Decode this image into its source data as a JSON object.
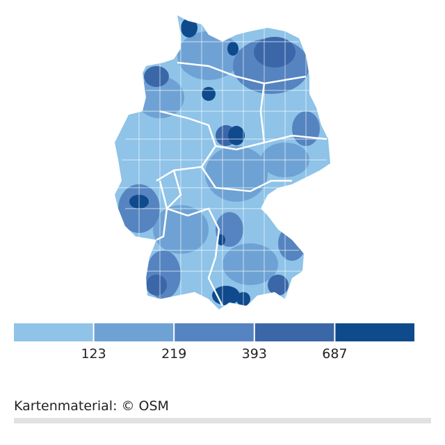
{
  "legend": {
    "colors": [
      "#8fc3e8",
      "#6fa2d4",
      "#5584c0",
      "#3b67a8",
      "#0f4a8c"
    ],
    "breaks": [
      123,
      219,
      393,
      687
    ]
  },
  "source": "Kartenmaterial: © OSM"
}
